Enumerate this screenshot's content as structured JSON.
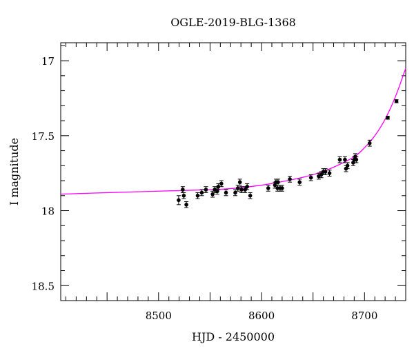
{
  "chart_data": {
    "type": "scatter",
    "title": "OGLE-2019-BLG-1368",
    "xlabel": "HJD - 2450000",
    "ylabel": "I magnitude",
    "xlim": [
      8405,
      8740
    ],
    "ylim": [
      18.6,
      16.88
    ],
    "y_inverted": true,
    "x_ticks": [
      8500,
      8600,
      8700
    ],
    "y_ticks": [
      17,
      17.5,
      18,
      18.5
    ],
    "y_tick_labels": [
      "17",
      "17.5",
      "18",
      "18.5"
    ],
    "grid": false,
    "colors": {
      "points": "#000000",
      "model": "#ff00ff",
      "frame": "#000000"
    },
    "series": [
      {
        "kind": "points",
        "x": [
          8519.5,
          8523.5,
          8524.5,
          8527.0,
          8538.0,
          8542.0,
          8546.0,
          8552.5,
          8554.5,
          8557.0,
          8558.0,
          8561.0,
          8565.5,
          8574.5,
          8577.0,
          8579.0,
          8580.5,
          8584.0,
          8586.0,
          8589.0,
          8606.5,
          8613.0,
          8614.0,
          8615.5,
          8616.0,
          8618.0,
          8620.0,
          8627.5,
          8637.0,
          8648.0,
          8655.5,
          8658.0,
          8660.0,
          8662.0,
          8666.0,
          8676.0,
          8681.0,
          8682.0,
          8683.5,
          8689.0,
          8690.0,
          8691.0,
          8692.0,
          8705.0,
          8722.5,
          8731.0
        ],
        "y": [
          17.93,
          17.86,
          17.9,
          17.96,
          17.9,
          17.88,
          17.86,
          17.89,
          17.86,
          17.87,
          17.84,
          17.82,
          17.88,
          17.88,
          17.85,
          17.81,
          17.86,
          17.86,
          17.84,
          17.9,
          17.85,
          17.83,
          17.81,
          17.85,
          17.81,
          17.85,
          17.85,
          17.79,
          17.81,
          17.78,
          17.77,
          17.76,
          17.74,
          17.74,
          17.75,
          17.66,
          17.66,
          17.72,
          17.7,
          17.68,
          17.66,
          17.64,
          17.66,
          17.55,
          17.38,
          17.27
        ],
        "err": [
          0.03,
          0.02,
          0.02,
          0.02,
          0.02,
          0.02,
          0.02,
          0.02,
          0.02,
          0.02,
          0.02,
          0.02,
          0.02,
          0.02,
          0.02,
          0.02,
          0.02,
          0.02,
          0.02,
          0.02,
          0.02,
          0.02,
          0.02,
          0.02,
          0.02,
          0.02,
          0.02,
          0.02,
          0.02,
          0.02,
          0.02,
          0.02,
          0.02,
          0.02,
          0.02,
          0.02,
          0.02,
          0.02,
          0.02,
          0.02,
          0.02,
          0.02,
          0.02,
          0.02,
          0.01,
          0.01
        ]
      },
      {
        "kind": "line",
        "x": [
          8405,
          8450,
          8500,
          8550,
          8575,
          8600,
          8625,
          8650,
          8670,
          8690,
          8700,
          8710,
          8720,
          8730,
          8740
        ],
        "y": [
          17.89,
          17.88,
          17.87,
          17.86,
          17.85,
          17.83,
          17.8,
          17.76,
          17.71,
          17.64,
          17.58,
          17.5,
          17.39,
          17.24,
          17.05
        ]
      }
    ]
  }
}
